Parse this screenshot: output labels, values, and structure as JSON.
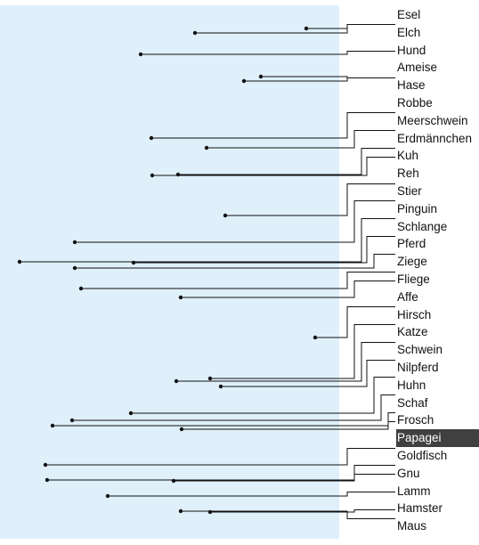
{
  "colors": {
    "background": "#ffffff",
    "plot_area": "#dff0fa",
    "line": "#111111",
    "selected_background": "#404040",
    "selected_text": "#ffffff"
  },
  "tree": {
    "selected": "Papagei",
    "labels": [
      "Esel",
      "Elch",
      "Hund",
      "Ameise",
      "Hase",
      "Robbe",
      "Meerschwein",
      "Erdmännchen",
      "Kuh",
      "Reh",
      "Stier",
      "Pinguin",
      "Schlange",
      "Pferd",
      "Ziege",
      "Fliege",
      "Affe",
      "Hirsch",
      "Katze",
      "Schwein",
      "Nilpferd",
      "Huhn",
      "Schaf",
      "Frosch",
      "Papagei",
      "Goldfisch",
      "Gnu",
      "Lamm",
      "Hamster",
      "Maus"
    ]
  }
}
